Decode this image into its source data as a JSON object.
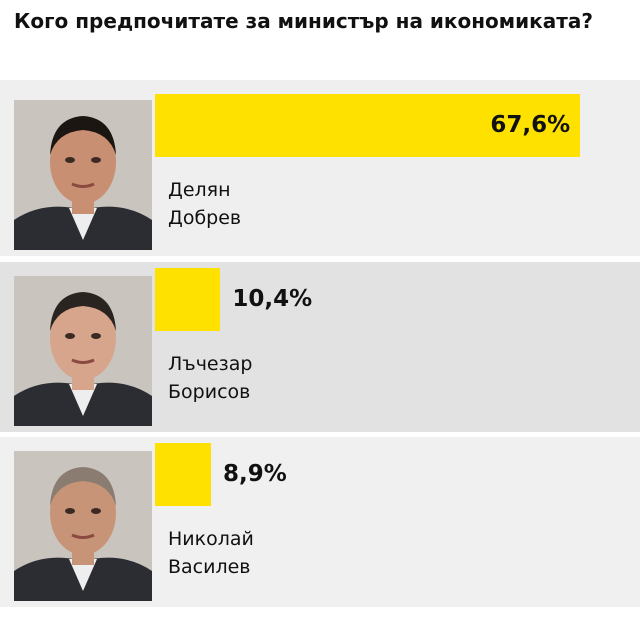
{
  "chart_data": {
    "type": "bar",
    "orientation": "horizontal",
    "title": "Кого предпочитате за министър на икономиката?",
    "categories": [
      "Делян Добрев",
      "Лъчезар Борисов",
      "Николай Василев"
    ],
    "values": [
      67.6,
      10.4,
      8.9
    ],
    "value_labels": [
      "67,6%",
      "10,4%",
      "8,9%"
    ],
    "color": "#ffe100"
  }
}
